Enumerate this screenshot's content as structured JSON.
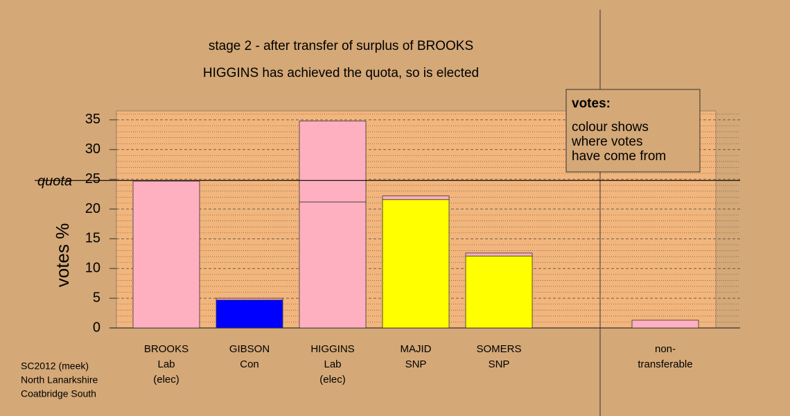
{
  "chart_data": {
    "type": "bar",
    "title": "stage 2 - after transfer of surplus of BROOKS",
    "subtitle": "HIGGINS has achieved the quota, so is elected",
    "y_label": "votes %",
    "categories": [
      [
        "BROOKS",
        "Lab",
        "(elec)"
      ],
      [
        "GIBSON",
        "Con"
      ],
      [
        "HIGGINS",
        "Lab",
        "(elec)"
      ],
      [
        "MAJID",
        "SNP"
      ],
      [
        "SOMERS",
        "SNP"
      ],
      null,
      [
        "non-",
        "transferable"
      ]
    ],
    "series": [
      {
        "colors": [
          "#ffb0c0",
          "#0000ff",
          "#ffb0c0",
          "#ffff00",
          "#ffff00",
          null,
          null
        ],
        "values": [
          24.7,
          4.7,
          21.2,
          21.6,
          12.1,
          null,
          null
        ]
      },
      {
        "color": "#ffb0c0",
        "values": [
          null,
          0.3,
          13.6,
          0.6,
          0.5,
          null,
          1.3
        ]
      }
    ],
    "ylim": [
      0,
      36.5
    ],
    "yticks": [
      0,
      5,
      10,
      15,
      20,
      25,
      30,
      35
    ],
    "minor_yticks": [
      1,
      2,
      3,
      4,
      6,
      7,
      8,
      9,
      11,
      12,
      13,
      14,
      16,
      17,
      18,
      19,
      21,
      22,
      23,
      24,
      26,
      27,
      28,
      29,
      31,
      32,
      33,
      34,
      36
    ],
    "grid": true,
    "quota": 24.8,
    "quota_label": "quota",
    "note": {
      "title": "votes:",
      "lines": [
        "colour shows",
        "where votes",
        "have come from"
      ]
    },
    "footer": [
      "SC2012 (meek)",
      "North Lanarkshire",
      "Coatbridge South"
    ]
  }
}
